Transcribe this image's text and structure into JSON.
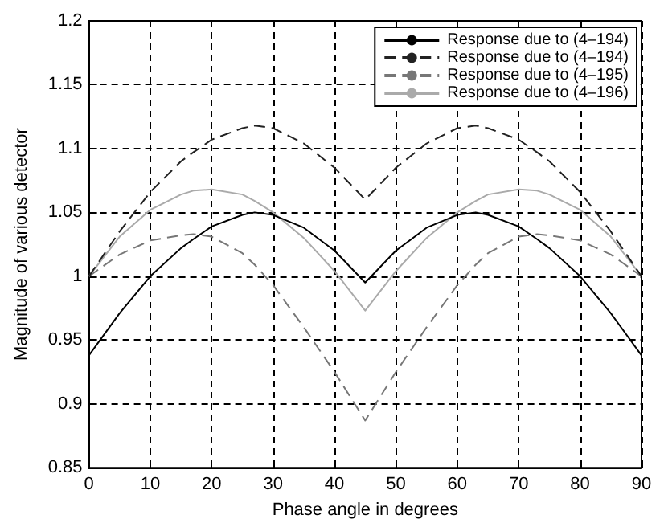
{
  "chart_data": {
    "type": "line",
    "xlabel": "Phase angle in degrees",
    "ylabel": "Magnitude of various detector",
    "x": [
      0,
      5,
      10,
      15,
      17,
      20,
      25,
      27,
      30,
      35,
      40,
      45,
      50,
      55,
      60,
      63,
      65,
      70,
      73,
      75,
      80,
      85,
      90
    ],
    "xlim": [
      0,
      90
    ],
    "xticks": [
      0,
      10,
      20,
      30,
      40,
      50,
      60,
      70,
      80,
      90
    ],
    "ylim": [
      0.85,
      1.2
    ],
    "yticks": [
      0.85,
      0.9,
      0.95,
      1,
      1.05,
      1.1,
      1.15,
      1.2
    ],
    "grid": true,
    "legend": "top right",
    "marker": "none",
    "series": [
      {
        "name": "Response due to (4–194)",
        "color": "#000000",
        "line_style": "solid",
        "values": [
          0.938,
          0.971,
          1.0,
          1.022,
          1.029,
          1.039,
          1.048,
          1.05,
          1.048,
          1.038,
          1.02,
          0.995,
          1.02,
          1.038,
          1.048,
          1.05,
          1.048,
          1.039,
          1.029,
          1.022,
          1.0,
          0.971,
          0.938
        ]
      },
      {
        "name": "Response due to (4–194)",
        "color": "#222222",
        "line_style": "dashed",
        "values": [
          1.0,
          1.035,
          1.066,
          1.09,
          1.097,
          1.107,
          1.116,
          1.118,
          1.116,
          1.104,
          1.085,
          1.06,
          1.085,
          1.104,
          1.116,
          1.118,
          1.116,
          1.107,
          1.097,
          1.09,
          1.066,
          1.035,
          1.0
        ]
      },
      {
        "name": "Response due to (4–195)",
        "color": "#777777",
        "line_style": "dashed",
        "values": [
          1.0,
          1.017,
          1.028,
          1.032,
          1.033,
          1.031,
          1.018,
          1.009,
          0.993,
          0.96,
          0.925,
          0.887,
          0.925,
          0.96,
          0.993,
          1.009,
          1.018,
          1.031,
          1.033,
          1.032,
          1.028,
          1.017,
          1.0
        ]
      },
      {
        "name": "Response due to (4–196)",
        "color": "#aaaaaa",
        "line_style": "solid",
        "values": [
          1.0,
          1.031,
          1.052,
          1.064,
          1.067,
          1.068,
          1.064,
          1.059,
          1.05,
          1.03,
          1.004,
          0.973,
          1.004,
          1.03,
          1.05,
          1.059,
          1.064,
          1.068,
          1.067,
          1.064,
          1.052,
          1.031,
          1.0
        ]
      }
    ]
  }
}
